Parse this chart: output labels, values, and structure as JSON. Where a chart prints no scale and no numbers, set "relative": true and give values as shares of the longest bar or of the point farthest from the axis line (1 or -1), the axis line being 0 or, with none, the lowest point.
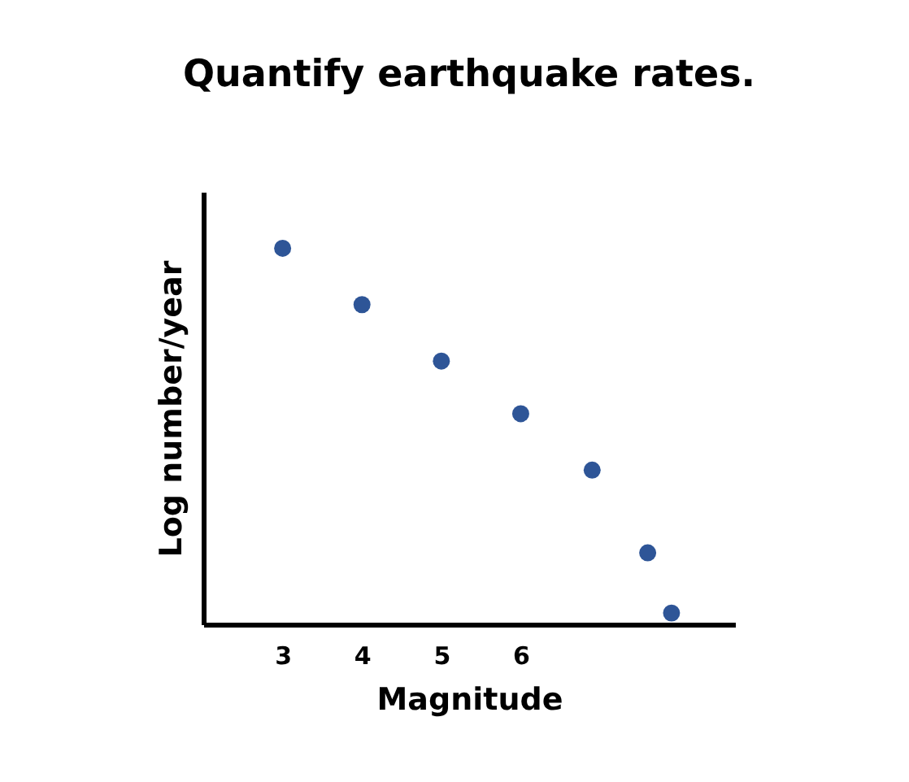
{
  "chart_data": {
    "type": "scatter",
    "title": "Quantify earthquake rates.",
    "xlabel": "Magnitude",
    "ylabel": "Log number/year",
    "x": [
      3,
      4,
      5,
      6,
      6.9,
      7.6,
      7.9
    ],
    "values": [
      1,
      0.85,
      0.7,
      0.56,
      0.41,
      0.19,
      0.03
    ],
    "color": "#2e5597",
    "relative": true,
    "xlim": [
      2,
      8.7
    ],
    "xticks": [
      3,
      4,
      5,
      6
    ],
    "grid": false,
    "marker": "circle"
  }
}
